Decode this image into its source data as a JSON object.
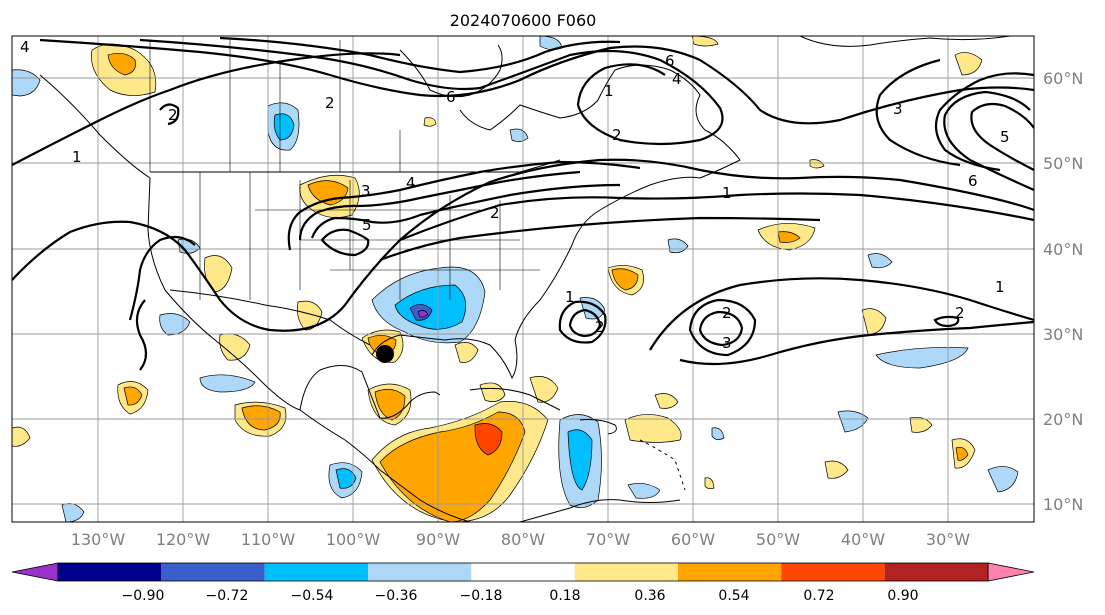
{
  "title": "2024070600 F060",
  "lat_labels": [
    "60°N",
    "50°N",
    "40°N",
    "30°N",
    "20°N",
    "10°N"
  ],
  "lon_labels": [
    "130°W",
    "120°W",
    "110°W",
    "100°W",
    "90°W",
    "80°W",
    "70°W",
    "60°W",
    "50°W",
    "40°W",
    "30°W"
  ],
  "contour_labels": [
    "4",
    "1",
    "2",
    "2",
    "6",
    "6",
    "4",
    "1",
    "2",
    "3",
    "5",
    "6",
    "3",
    "4",
    "5",
    "2",
    "1",
    "2",
    "3",
    "2",
    "1",
    "2",
    "1"
  ],
  "colorbar": {
    "ticks": [
      "−0.90",
      "−0.72",
      "−0.54",
      "−0.36",
      "−0.18",
      "0.18",
      "0.36",
      "0.54",
      "0.72",
      "0.90"
    ],
    "colors": [
      "#9932cc",
      "#00008b",
      "#3a5fcd",
      "#00bfff",
      "#add8f7",
      "#ffffff",
      "#ffe88a",
      "#ffa500",
      "#ff4500",
      "#b22222",
      "#ff82ab"
    ]
  },
  "colors": {
    "yellow": "#ffe88a",
    "orange": "#ffa500",
    "red": "#ff4500",
    "light_blue": "#add8f7",
    "blue": "#00bfff",
    "dark_blue": "#3a5fcd",
    "purple": "#9932cc"
  },
  "marker": "storm-center-dot"
}
